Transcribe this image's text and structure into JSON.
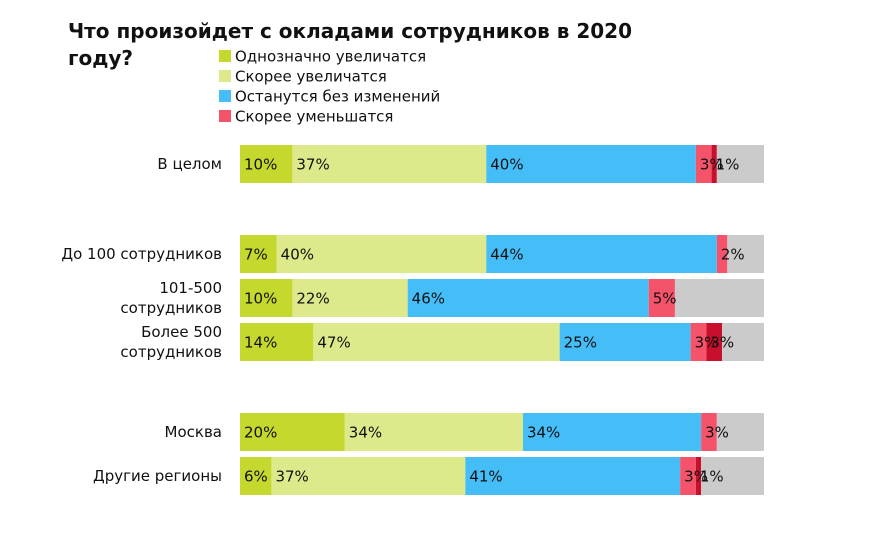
{
  "chart_data": {
    "type": "stacked-bar-horizontal",
    "title": "Что произойдет с окладами сотрудников в 2020 году?",
    "categories": [
      "В целом",
      "До 100 сотрудников",
      "101-500 сотрудников",
      "Более 500 сотрудников",
      "Москва",
      "Другие регионы"
    ],
    "xlim": [
      0,
      100
    ],
    "series": [
      {
        "name": "Однозначно увеличатся",
        "color": "#c4d82e",
        "values": [
          10,
          7,
          10,
          14,
          20,
          6
        ],
        "value_labels": [
          "10%",
          "7%",
          "10%",
          "14%",
          "20%",
          "6%"
        ]
      },
      {
        "name": "Скорее увеличатся",
        "color": "#dde98a",
        "values": [
          37,
          40,
          22,
          47,
          34,
          37
        ],
        "value_labels": [
          "37%",
          "40%",
          "22%",
          "47%",
          "34%",
          "37%"
        ]
      },
      {
        "name": "Останутся без изменений",
        "color": "#45bdf7",
        "values": [
          40,
          44,
          46,
          25,
          34,
          41
        ],
        "value_labels": [
          "40%",
          "44%",
          "46%",
          "25%",
          "34%",
          "41%"
        ]
      },
      {
        "name": "Скорее уменьшатся",
        "color": "#f4536a",
        "values": [
          3,
          2,
          5,
          3,
          3,
          3
        ],
        "value_labels": [
          "3%",
          "2%",
          "5%",
          "3%",
          "3%",
          "3%"
        ]
      },
      {
        "color": "#c8102e",
        "values": [
          1,
          null,
          null,
          3,
          null,
          1
        ],
        "value_labels": [
          "1%",
          null,
          null,
          "3%",
          null,
          "1%"
        ]
      },
      {
        "color": "#cbcbcb",
        "values": [
          9,
          7,
          17,
          8,
          9,
          12
        ]
      }
    ]
  }
}
